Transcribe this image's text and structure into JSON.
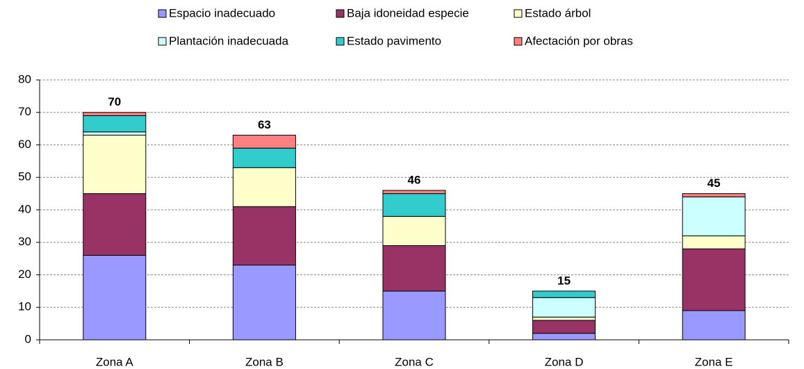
{
  "chart_data": {
    "type": "stacked_bar",
    "categories": [
      "Zona A",
      "Zona B",
      "Zona C",
      "Zona D",
      "Zona E"
    ],
    "series": [
      {
        "name": "Espacio inadecuado",
        "color": "#9999ff",
        "values": [
          26,
          23,
          15,
          2,
          9
        ]
      },
      {
        "name": "Baja idoneidad especie",
        "color": "#993366",
        "values": [
          19,
          18,
          14,
          4,
          19
        ]
      },
      {
        "name": "Estado árbol",
        "color": "#ffffcc",
        "values": [
          18,
          12,
          9,
          1,
          4
        ]
      },
      {
        "name": "Plantación inadecuada",
        "color": "#ccffff",
        "values": [
          1,
          0,
          0,
          6,
          12
        ]
      },
      {
        "name": "Estado pavimento",
        "color": "#33cccc",
        "values": [
          5,
          6,
          7,
          2,
          0
        ]
      },
      {
        "name": "Afectación por obras",
        "color": "#ff8080",
        "values": [
          1,
          4,
          1,
          0,
          1
        ]
      }
    ],
    "totals": [
      70,
      63,
      46,
      15,
      45
    ],
    "ylim": [
      0,
      80
    ],
    "yticks": [
      0,
      10,
      20,
      30,
      40,
      50,
      60,
      70,
      80
    ],
    "grid": true,
    "legend": "top"
  }
}
